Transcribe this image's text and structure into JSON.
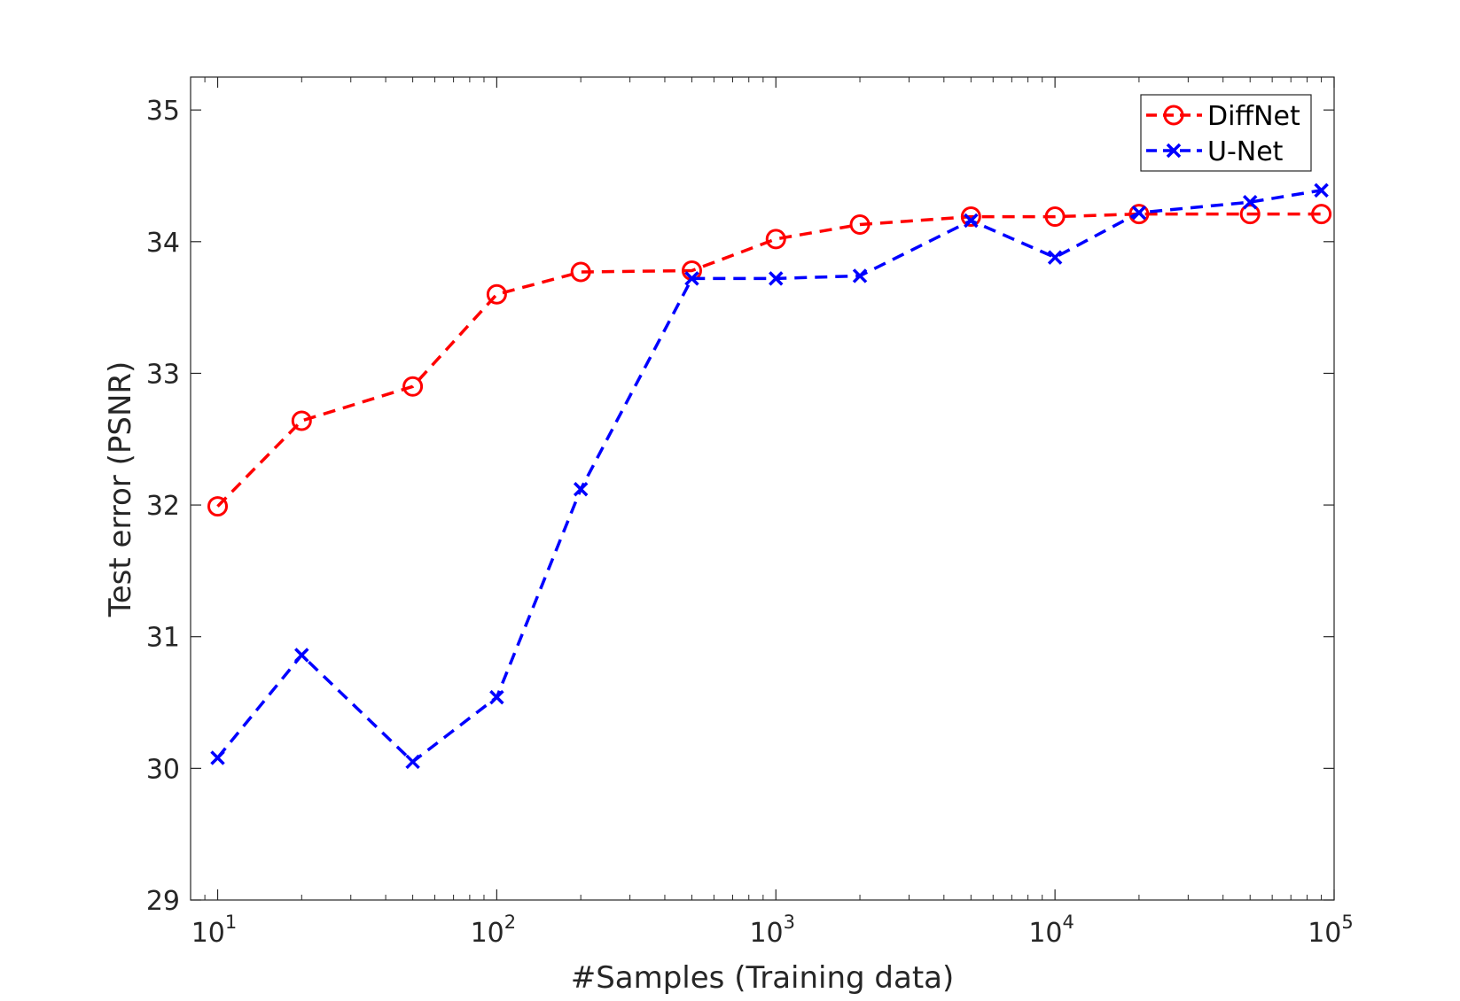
{
  "chart_data": {
    "type": "line",
    "title": "",
    "xlabel": "#Samples (Training data)",
    "ylabel": "Test error (PSNR)",
    "xscale": "log",
    "xlim": [
      8,
      100000
    ],
    "ylim": [
      29,
      35.25
    ],
    "grid": false,
    "legend_position": "top-right",
    "x_ticks": [
      {
        "value": 10,
        "base": "10",
        "exp": "1"
      },
      {
        "value": 100,
        "base": "10",
        "exp": "2"
      },
      {
        "value": 1000,
        "base": "10",
        "exp": "3"
      },
      {
        "value": 10000,
        "base": "10",
        "exp": "4"
      },
      {
        "value": 100000,
        "base": "10",
        "exp": "5"
      }
    ],
    "y_ticks": [
      {
        "value": 29,
        "label": "29"
      },
      {
        "value": 30,
        "label": "30"
      },
      {
        "value": 31,
        "label": "31"
      },
      {
        "value": 32,
        "label": "32"
      },
      {
        "value": 33,
        "label": "33"
      },
      {
        "value": 34,
        "label": "34"
      },
      {
        "value": 35,
        "label": "35"
      }
    ],
    "x": [
      10,
      20,
      50,
      100,
      200,
      500,
      1000,
      2000,
      5000,
      10000,
      20000,
      50000,
      90000
    ],
    "series": [
      {
        "name": "DiffNet",
        "color": "#ff0000",
        "marker": "circle",
        "line_style": "dashed",
        "values": [
          31.99,
          32.64,
          32.9,
          33.6,
          33.77,
          33.78,
          34.02,
          34.13,
          34.19,
          34.19,
          34.21,
          34.21,
          34.21
        ]
      },
      {
        "name": "U-Net",
        "color": "#0000ff",
        "marker": "x",
        "line_style": "dashed",
        "values": [
          30.08,
          30.86,
          30.05,
          30.54,
          32.12,
          33.72,
          33.72,
          33.74,
          34.16,
          33.88,
          34.22,
          34.3,
          34.39
        ]
      }
    ]
  }
}
